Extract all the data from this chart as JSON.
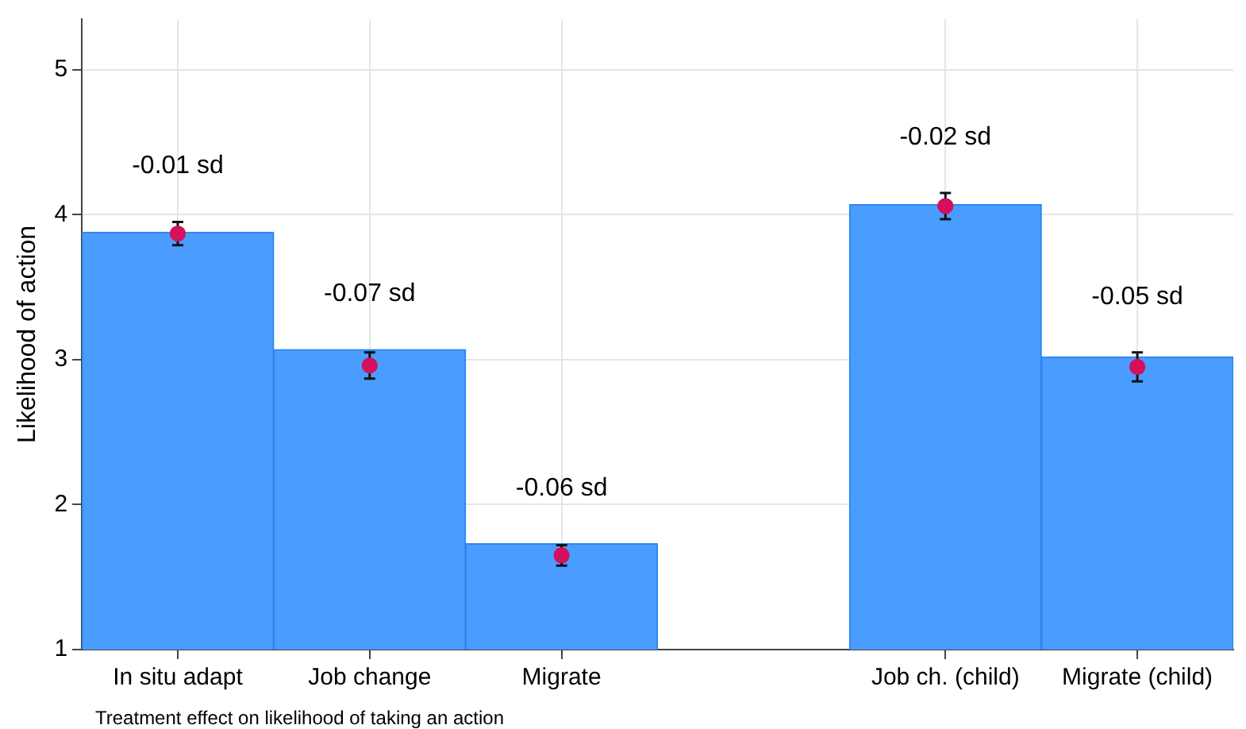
{
  "chart_data": {
    "type": "bar",
    "ylabel": "Likelihood of action",
    "categories": [
      "In situ adapt",
      "Job change",
      "Migrate",
      null,
      "Job ch. (child)",
      "Migrate (child)"
    ],
    "series": [
      {
        "color": "#4b9cff",
        "values": [
          3.88,
          3.07,
          1.73,
          null,
          4.07,
          3.02
        ]
      },
      {
        "type": "scatter",
        "color": "#d5105c",
        "marker": "circle",
        "values": [
          3.87,
          2.96,
          1.65,
          null,
          4.06,
          2.95
        ],
        "errors": [
          0.08,
          0.09,
          0.07,
          null,
          0.09,
          0.1
        ]
      }
    ],
    "ylim": [
      1,
      5.35
    ],
    "yticks": [
      1,
      2,
      3,
      4,
      5
    ],
    "grid": true,
    "legend": false,
    "annotations": [
      "-0.01 sd",
      "-0.07 sd",
      "-0.06 sd",
      "-0.02 sd",
      "-0.05 sd",
      "Treatment effect on likelihood of taking an action"
    ]
  }
}
